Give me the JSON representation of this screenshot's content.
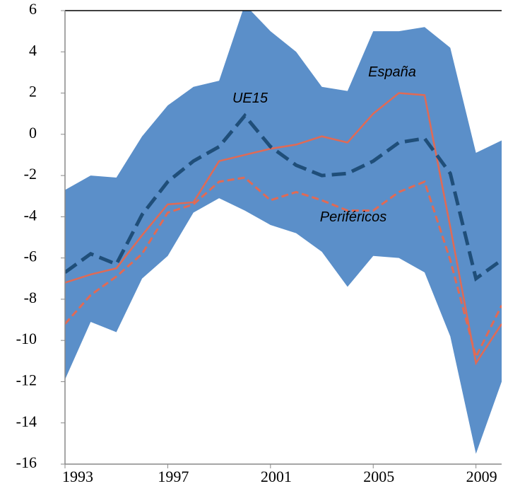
{
  "chart_data": {
    "type": "line",
    "x": [
      1993,
      1994,
      1995,
      1996,
      1997,
      1998,
      1999,
      2000,
      2001,
      2002,
      2003,
      2004,
      2005,
      2006,
      2007,
      2008,
      2009,
      2010
    ],
    "band": {
      "color": "#5b8fc9",
      "upper": [
        -2.7,
        -2.0,
        -2.1,
        -0.1,
        1.4,
        2.3,
        2.6,
        6.3,
        5.0,
        4.0,
        2.3,
        2.1,
        5.0,
        5.0,
        5.2,
        4.2,
        -0.9,
        -0.3
      ],
      "lower": [
        -11.9,
        -9.1,
        -9.6,
        -7.0,
        -5.9,
        -3.8,
        -3.1,
        -3.7,
        -4.4,
        -4.8,
        -5.7,
        -7.4,
        -5.9,
        -6.0,
        -6.7,
        -9.8,
        -15.5,
        -12.0
      ]
    },
    "series": [
      {
        "name": "España",
        "color": "#e06a55",
        "dash": false,
        "width": 2.5,
        "values": [
          -7.2,
          -6.8,
          -6.5,
          -4.9,
          -3.4,
          -3.3,
          -1.3,
          -1.0,
          -0.7,
          -0.5,
          -0.1,
          -0.4,
          1.0,
          2.0,
          1.9,
          -4.5,
          -11.1,
          -9.2
        ]
      },
      {
        "name": "UE15",
        "color": "#1f4e79",
        "dash": true,
        "width": 5,
        "values": [
          -6.7,
          -5.8,
          -6.3,
          -3.9,
          -2.3,
          -1.3,
          -0.6,
          0.9,
          -0.6,
          -1.5,
          -2.0,
          -1.9,
          -1.3,
          -0.4,
          -0.2,
          -1.9,
          -7.0,
          -6.1
        ]
      },
      {
        "name": "Periféricos",
        "color": "#e06a55",
        "dash": true,
        "width": 3,
        "values": [
          -9.2,
          -7.8,
          -6.9,
          -5.8,
          -3.8,
          -3.4,
          -2.3,
          -2.1,
          -3.2,
          -2.8,
          -3.2,
          -3.7,
          -3.7,
          -2.8,
          -2.3,
          -6.1,
          -10.8,
          -8.3
        ]
      }
    ],
    "xlim": [
      1993,
      2010
    ],
    "xticks": [
      1993,
      1997,
      2001,
      2005,
      2009
    ],
    "ylim": [
      -16,
      6
    ],
    "yticks": [
      -16,
      -14,
      -12,
      -10,
      -8,
      -6,
      -4,
      -2,
      0,
      2,
      4,
      6
    ]
  }
}
